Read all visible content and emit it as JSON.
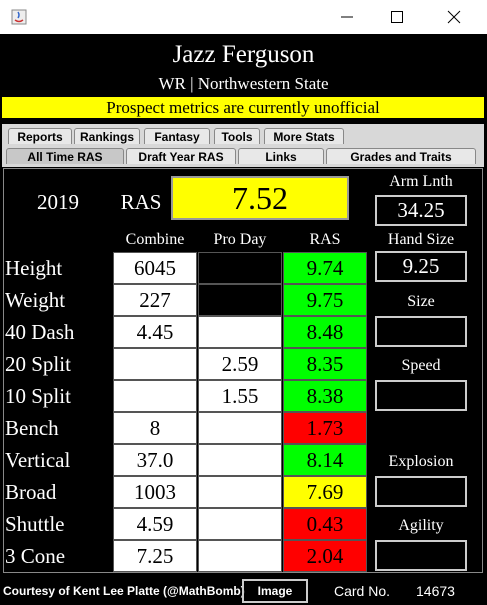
{
  "header": {
    "name": "Jazz Ferguson",
    "subtitle": "WR | Northwestern State",
    "banner": "Prospect metrics are currently unofficial"
  },
  "tabs": {
    "row1": [
      "Reports",
      "Rankings",
      "Fantasy",
      "Tools",
      "More Stats"
    ],
    "row2": [
      "All Time RAS",
      "Draft Year RAS",
      "Links",
      "Grades and Traits"
    ],
    "selected": "All Time RAS"
  },
  "panel": {
    "year": "2019",
    "score_label": "RAS",
    "score": "7.52",
    "arm_length_label": "Arm Lnth",
    "arm_length": "34.25",
    "hand_size_label": "Hand Size",
    "hand_size": "9.25",
    "columns": [
      "Combine",
      "Pro Day",
      "RAS"
    ],
    "rows": [
      {
        "label": "Height",
        "combine": "6045",
        "pro_day": null,
        "pro_day_cell": "#000000",
        "ras": "9.74",
        "ras_color": "#00ff00"
      },
      {
        "label": "Weight",
        "combine": "227",
        "pro_day": null,
        "pro_day_cell": "#000000",
        "ras": "9.75",
        "ras_color": "#00ff00"
      },
      {
        "label": "40 Dash",
        "combine": "4.45",
        "pro_day": null,
        "pro_day_cell": "#ffffff",
        "ras": "8.48",
        "ras_color": "#00ff00"
      },
      {
        "label": "20 Split",
        "combine": null,
        "pro_day": "2.59",
        "pro_day_cell": "#ffffff",
        "ras": "8.35",
        "ras_color": "#00ff00"
      },
      {
        "label": "10 Split",
        "combine": null,
        "pro_day": "1.55",
        "pro_day_cell": "#ffffff",
        "ras": "8.38",
        "ras_color": "#00ff00"
      },
      {
        "label": "Bench",
        "combine": "8",
        "pro_day": null,
        "pro_day_cell": "#ffffff",
        "ras": "1.73",
        "ras_color": "#ff0000"
      },
      {
        "label": "Vertical",
        "combine": "37.0",
        "pro_day": null,
        "pro_day_cell": "#ffffff",
        "ras": "8.14",
        "ras_color": "#00ff00"
      },
      {
        "label": "Broad",
        "combine": "1003",
        "pro_day": null,
        "pro_day_cell": "#ffffff",
        "ras": "7.69",
        "ras_color": "#ffff00"
      },
      {
        "label": "Shuttle",
        "combine": "4.59",
        "pro_day": null,
        "pro_day_cell": "#ffffff",
        "ras": "0.43",
        "ras_color": "#ff0000"
      },
      {
        "label": "3 Cone",
        "combine": "7.25",
        "pro_day": null,
        "pro_day_cell": "#ffffff",
        "ras": "2.04",
        "ras_color": "#ff0000"
      }
    ],
    "groups": [
      "Size",
      "Speed",
      "Explosion",
      "Agility"
    ]
  },
  "footer": {
    "credit": "Courtesy of Kent Lee Platte (@MathBomb)",
    "button": "Image",
    "card_label": "Card No.",
    "card_number": "14673"
  }
}
